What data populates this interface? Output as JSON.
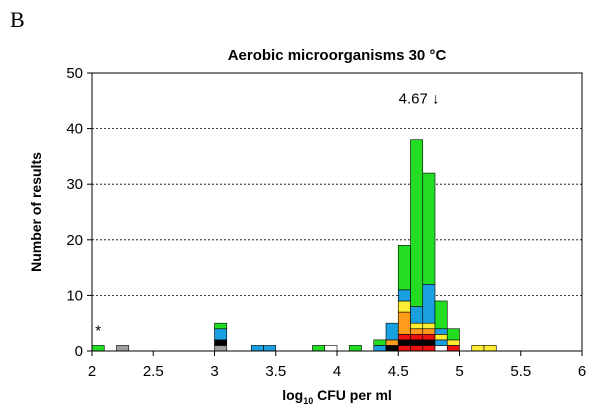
{
  "panel_letter": "B",
  "chart_data": {
    "type": "bar",
    "stacked": true,
    "title": "Aerobic microorganisms 30 °C",
    "xlabel_main": "log",
    "xlabel_sub": "10",
    "xlabel_rest": " CFU per ml",
    "ylabel": "Number of results",
    "xlim": [
      2,
      6
    ],
    "ylim": [
      0,
      50
    ],
    "bin_width": 0.1,
    "x_ticks": [
      "2",
      "2.5",
      "3",
      "3.5",
      "4",
      "4.5",
      "5",
      "5.5",
      "6"
    ],
    "y_ticks": [
      "0",
      "10",
      "20",
      "30",
      "40",
      "50"
    ],
    "grid": "horizontal dashed",
    "annotations": [
      {
        "text": "4.67 ↓",
        "x": 4.67,
        "y": 44.5
      },
      {
        "text": "*",
        "x": 2.05,
        "y": 2.8
      }
    ],
    "colors": {
      "green": "#22dd22",
      "blue": "#1aa0e0",
      "orange": "#ff9a1a",
      "yellow": "#ffee33",
      "red": "#ee1111",
      "black": "#000000",
      "gray": "#a0a0a0",
      "white": "#ffffff"
    },
    "bars": [
      {
        "x": 2.0,
        "segments": [
          {
            "color": "green",
            "value": 1
          }
        ]
      },
      {
        "x": 2.2,
        "segments": [
          {
            "color": "gray",
            "value": 1
          }
        ]
      },
      {
        "x": 3.0,
        "segments": [
          {
            "color": "gray",
            "value": 1
          },
          {
            "color": "black",
            "value": 1
          },
          {
            "color": "blue",
            "value": 2
          },
          {
            "color": "green",
            "value": 1
          }
        ]
      },
      {
        "x": 3.3,
        "segments": [
          {
            "color": "blue",
            "value": 1
          }
        ]
      },
      {
        "x": 3.4,
        "segments": [
          {
            "color": "blue",
            "value": 1
          }
        ]
      },
      {
        "x": 3.8,
        "segments": [
          {
            "color": "green",
            "value": 1
          }
        ]
      },
      {
        "x": 3.9,
        "segments": [
          {
            "color": "white",
            "value": 1
          }
        ]
      },
      {
        "x": 4.1,
        "segments": [
          {
            "color": "green",
            "value": 1
          }
        ]
      },
      {
        "x": 4.3,
        "segments": [
          {
            "color": "blue",
            "value": 1
          },
          {
            "color": "green",
            "value": 1
          }
        ]
      },
      {
        "x": 4.4,
        "segments": [
          {
            "color": "black",
            "value": 1
          },
          {
            "color": "orange",
            "value": 1
          },
          {
            "color": "blue",
            "value": 3
          }
        ]
      },
      {
        "x": 4.5,
        "segments": [
          {
            "color": "red",
            "value": 1
          },
          {
            "color": "black",
            "value": 1
          },
          {
            "color": "red",
            "value": 1
          },
          {
            "color": "orange",
            "value": 4
          },
          {
            "color": "yellow",
            "value": 2
          },
          {
            "color": "blue",
            "value": 2
          },
          {
            "color": "green",
            "value": 8
          }
        ]
      },
      {
        "x": 4.6,
        "segments": [
          {
            "color": "red",
            "value": 1
          },
          {
            "color": "black",
            "value": 1
          },
          {
            "color": "red",
            "value": 1
          },
          {
            "color": "orange",
            "value": 1
          },
          {
            "color": "yellow",
            "value": 1
          },
          {
            "color": "blue",
            "value": 3
          },
          {
            "color": "green",
            "value": 30
          }
        ]
      },
      {
        "x": 4.7,
        "segments": [
          {
            "color": "red",
            "value": 1
          },
          {
            "color": "black",
            "value": 1
          },
          {
            "color": "red",
            "value": 1
          },
          {
            "color": "orange",
            "value": 1
          },
          {
            "color": "yellow",
            "value": 1
          },
          {
            "color": "blue",
            "value": 7
          },
          {
            "color": "green",
            "value": 20
          }
        ]
      },
      {
        "x": 4.8,
        "segments": [
          {
            "color": "white",
            "value": 1
          },
          {
            "color": "blue",
            "value": 1
          },
          {
            "color": "yellow",
            "value": 1
          },
          {
            "color": "blue",
            "value": 1
          },
          {
            "color": "green",
            "value": 5
          }
        ]
      },
      {
        "x": 4.9,
        "segments": [
          {
            "color": "red",
            "value": 1
          },
          {
            "color": "yellow",
            "value": 1
          },
          {
            "color": "green",
            "value": 2
          }
        ]
      },
      {
        "x": 5.1,
        "segments": [
          {
            "color": "yellow",
            "value": 1
          }
        ]
      },
      {
        "x": 5.2,
        "segments": [
          {
            "color": "yellow",
            "value": 1
          }
        ]
      }
    ]
  }
}
